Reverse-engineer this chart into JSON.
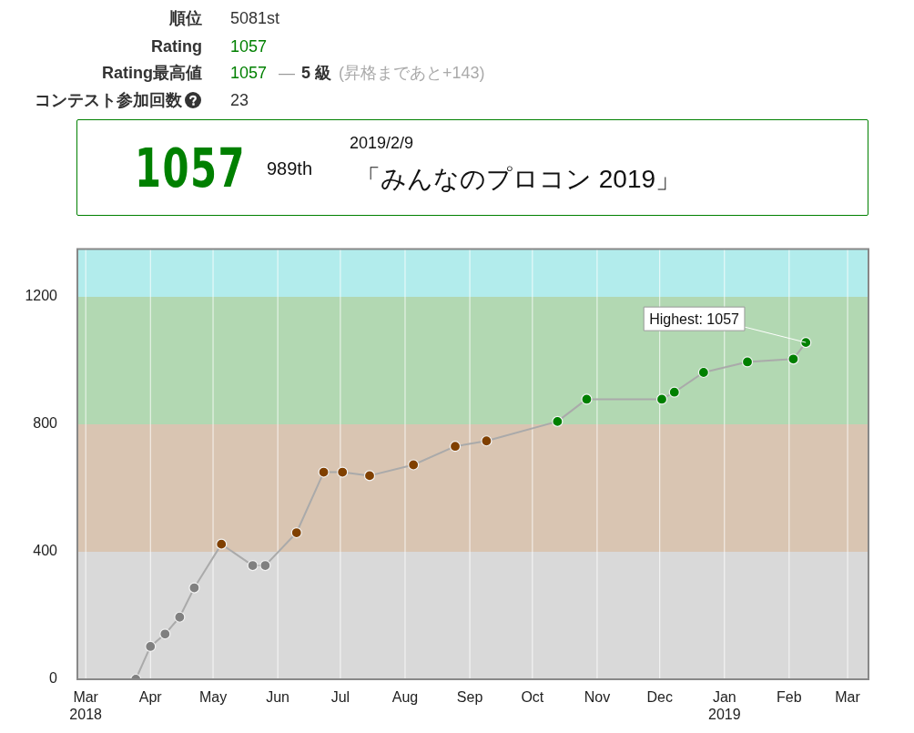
{
  "chart_data": {
    "type": "line",
    "annotations": [
      "順位",
      "5081st",
      "Rating",
      "1057",
      "Rating最高値",
      "1057",
      "—",
      "5 級",
      "(昇格まであと+143)",
      "コンテスト参加回数",
      "23",
      "1057",
      "989th",
      "2019/2/9",
      "「みんなのプロコン 2019」",
      {
        "text": "Highest: 1057",
        "x": "2019-02-09",
        "y": 1057
      }
    ],
    "x": [
      "2018-03-25",
      "2018-04-01",
      "2018-04-08",
      "2018-04-15",
      "2018-04-22",
      "2018-05-05",
      "2018-05-20",
      "2018-05-26",
      "2018-06-10",
      "2018-06-23",
      "2018-07-02",
      "2018-07-15",
      "2018-08-05",
      "2018-08-25",
      "2018-09-09",
      "2018-10-13",
      "2018-10-27",
      "2018-12-02",
      "2018-12-08",
      "2018-12-22",
      "2019-01-12",
      "2019-02-03",
      "2019-02-09"
    ],
    "series": [
      {
        "color": "#aaaaaa",
        "colors": [
          "#808080",
          "#808080",
          "#808080",
          "#808080",
          "#808080",
          "#804000",
          "#808080",
          "#808080",
          "#804000",
          "#804000",
          "#804000",
          "#804000",
          "#804000",
          "#804000",
          "#804000",
          "#008000",
          "#008000",
          "#008000",
          "#008000",
          "#008000",
          "#008000",
          "#008000",
          "#008000"
        ],
        "values": [
          0,
          103,
          142,
          195,
          287,
          424,
          357,
          357,
          460,
          650,
          650,
          639,
          673,
          731,
          748,
          809,
          879,
          879,
          901,
          963,
          996,
          1005,
          1057
        ]
      }
    ],
    "bands": [
      {
        "axis": "y",
        "from": 0,
        "to": 400,
        "color": "#d9d9d9"
      },
      {
        "axis": "y",
        "from": 400,
        "to": 800,
        "color": "#d9c5b2"
      },
      {
        "axis": "y",
        "from": 800,
        "to": 1200,
        "color": "#b2d8b2"
      },
      {
        "axis": "y",
        "from": 1200,
        "to": 1350,
        "color": "#b2ecec"
      }
    ],
    "xlim": [
      "2018-02-25",
      "2019-03-11"
    ],
    "xticks": [
      {
        "value": "2018-03-01",
        "label": "Mar\n2018"
      },
      {
        "value": "2018-04-01",
        "label": "Apr"
      },
      {
        "value": "2018-05-01",
        "label": "May"
      },
      {
        "value": "2018-06-01",
        "label": "Jun"
      },
      {
        "value": "2018-07-01",
        "label": "Jul"
      },
      {
        "value": "2018-08-01",
        "label": "Aug"
      },
      {
        "value": "2018-09-01",
        "label": "Sep"
      },
      {
        "value": "2018-10-01",
        "label": "Oct"
      },
      {
        "value": "2018-11-01",
        "label": "Nov"
      },
      {
        "value": "2018-12-01",
        "label": "Dec"
      },
      {
        "value": "2019-01-01",
        "label": "Jan\n2019"
      },
      {
        "value": "2019-02-01",
        "label": "Feb"
      },
      {
        "value": "2019-03-01",
        "label": "Mar"
      }
    ],
    "ylim": [
      0,
      1350
    ],
    "yticks": [
      0,
      400,
      800,
      1200
    ],
    "grid": "x",
    "legend": false,
    "marker": "circle",
    "line_style": "solid"
  }
}
